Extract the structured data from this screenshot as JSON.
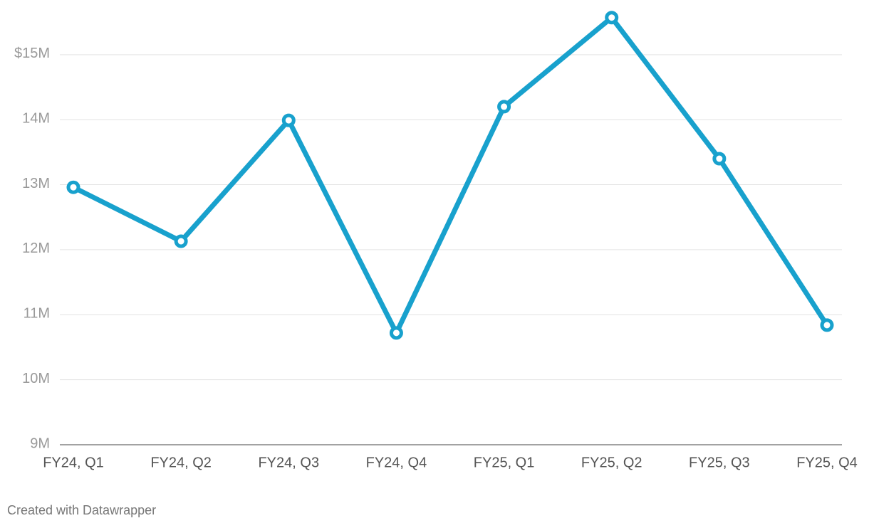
{
  "chart_data": {
    "type": "line",
    "categories": [
      "FY24, Q1",
      "FY24, Q2",
      "FY24, Q3",
      "FY24, Q4",
      "FY25, Q1",
      "FY25, Q2",
      "FY25, Q3",
      "FY25, Q4"
    ],
    "series": [
      {
        "color": "#18a1cd",
        "values": [
          12960000,
          12130000,
          13990000,
          10720000,
          14200000,
          15570000,
          13400000,
          10840000
        ]
      }
    ],
    "ylim": [
      9000000,
      15600000
    ],
    "yticks": [
      {
        "value": 9000000,
        "label": "9M"
      },
      {
        "value": 10000000,
        "label": "10M"
      },
      {
        "value": 11000000,
        "label": "11M"
      },
      {
        "value": 12000000,
        "label": "12M"
      },
      {
        "value": 13000000,
        "label": "13M"
      },
      {
        "value": 14000000,
        "label": "14M"
      },
      {
        "value": 15000000,
        "label": "$15M"
      }
    ],
    "grid": true,
    "credit": "Created with Datawrapper"
  }
}
